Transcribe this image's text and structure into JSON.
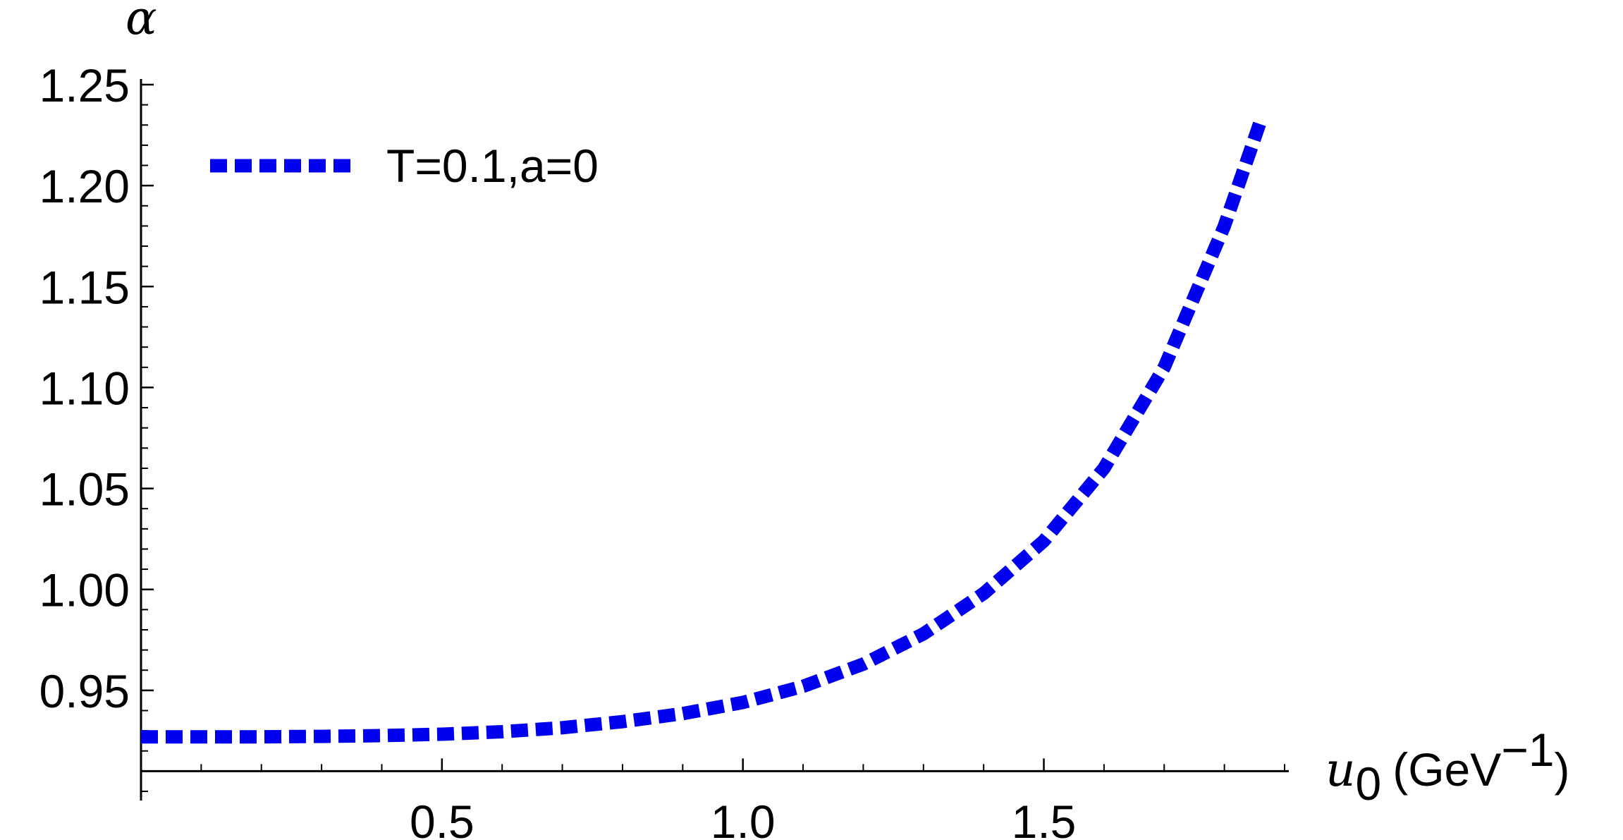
{
  "chart_data": {
    "type": "line",
    "ylabel": "α",
    "xlabel": {
      "var": "u",
      "sub": "0",
      "unit_open": "(GeV",
      "unit_sup": "−1",
      "unit_close": ")"
    },
    "xlim": [
      0,
      1.9
    ],
    "ylim": [
      0.9,
      1.25
    ],
    "axes_origin": {
      "x": 0,
      "y": 0.91
    },
    "x_ticks": [
      {
        "value": 0.5,
        "label": "0.5"
      },
      {
        "value": 1.0,
        "label": "1.0"
      },
      {
        "value": 1.5,
        "label": "1.5"
      }
    ],
    "y_ticks": [
      {
        "value": 0.95,
        "label": "0.95"
      },
      {
        "value": 1.0,
        "label": "1.00"
      },
      {
        "value": 1.05,
        "label": "1.05"
      },
      {
        "value": 1.1,
        "label": "1.10"
      },
      {
        "value": 1.15,
        "label": "1.15"
      },
      {
        "value": 1.2,
        "label": "1.20"
      },
      {
        "value": 1.25,
        "label": "1.25"
      }
    ],
    "minor_x_step": 0.1,
    "minor_y_step": 0.01,
    "legend_position": "top-left",
    "series": [
      {
        "name": "T=0.1,a=0",
        "color": "#0000ee",
        "style": "dotted",
        "x": [
          0,
          0.1,
          0.2,
          0.3,
          0.4,
          0.5,
          0.6,
          0.7,
          0.8,
          0.9,
          1.0,
          1.1,
          1.2,
          1.3,
          1.4,
          1.5,
          1.6,
          1.7,
          1.8,
          1.86
        ],
        "y": [
          0.927,
          0.927,
          0.927,
          0.9272,
          0.9276,
          0.9283,
          0.9295,
          0.9315,
          0.9345,
          0.9385,
          0.944,
          0.952,
          0.963,
          0.978,
          0.998,
          1.024,
          1.06,
          1.11,
          1.18,
          1.232
        ]
      }
    ]
  }
}
